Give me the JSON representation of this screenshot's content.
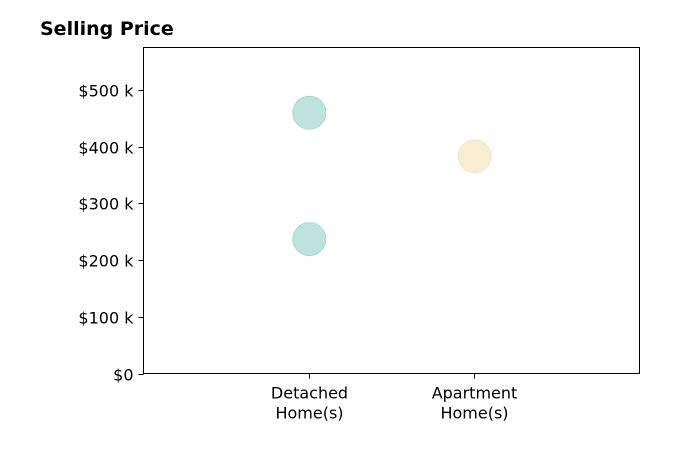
{
  "chart_data": {
    "type": "scatter",
    "title": "Selling Price",
    "xlabel": "",
    "ylabel": "",
    "categories": [
      "Detached Home(s)",
      "Apartment Home(s)"
    ],
    "category_lines": [
      [
        "Detached",
        "Home(s)"
      ],
      [
        "Apartment",
        "Home(s)"
      ]
    ],
    "xlim": [
      -1,
      2
    ],
    "ylim": [
      0,
      575000
    ],
    "y_ticks": [
      0,
      100000,
      200000,
      300000,
      400000,
      500000
    ],
    "y_tick_labels": [
      "$0",
      "$100 k",
      "$200 k",
      "$300 k",
      "$400 k",
      "$500 k"
    ],
    "grid": false,
    "legend": "none",
    "points": [
      {
        "category": "Detached Home(s)",
        "value": 460000,
        "color": "#a8d9d4"
      },
      {
        "category": "Detached Home(s)",
        "value": 237000,
        "color": "#a8d9d4"
      },
      {
        "category": "Apartment Home(s)",
        "value": 383000,
        "color": "#f7e6c4"
      }
    ],
    "colors": {
      "detached": "#a8d9d4",
      "apartment": "#f7e6c4"
    }
  }
}
